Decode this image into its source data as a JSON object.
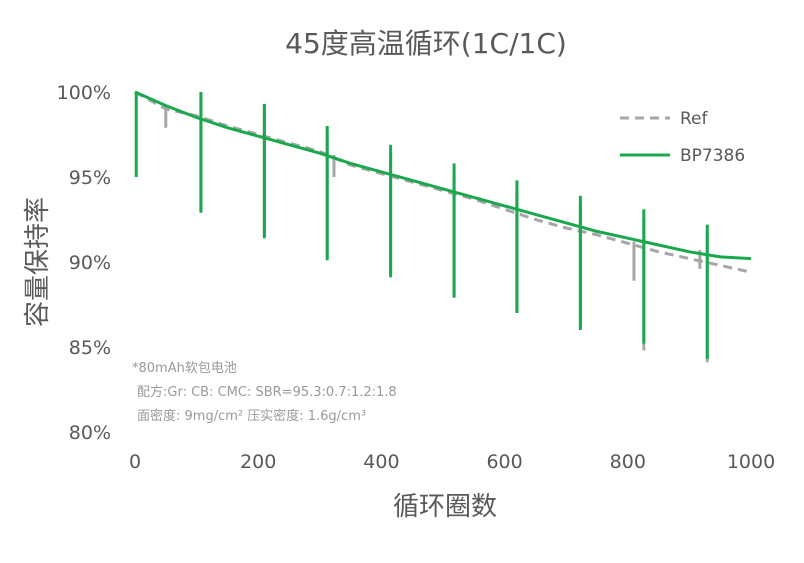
{
  "chart_data": {
    "type": "line",
    "title": "45度高温循环(1C/1C)",
    "xlabel": "循环圈数",
    "ylabel": "容量保持率",
    "xlim": [
      0,
      1000
    ],
    "ylim": [
      80,
      100
    ],
    "x_ticks": [
      "0",
      "200",
      "400",
      "600",
      "800",
      "1000"
    ],
    "y_ticks": [
      "80%",
      "85%",
      "90%",
      "95%",
      "100%"
    ],
    "grid": false,
    "legend_position": "top-right",
    "notes": [
      "*80mAh软包电池",
      "配方:Gr: CB: CMC: SBR=95.3:0.7:1.2:1.8",
      "面密度: 9mg/cm² 压实密度: 1.6g/cm³"
    ],
    "series": [
      {
        "name": "Ref",
        "color": "#a6a6a6",
        "style": "dashed",
        "x": [
          0,
          50,
          100,
          150,
          200,
          250,
          300,
          350,
          400,
          450,
          500,
          550,
          600,
          650,
          700,
          750,
          800,
          850,
          900,
          950,
          1000
        ],
        "y": [
          100.0,
          99.0,
          98.6,
          98.0,
          97.5,
          97.0,
          96.5,
          95.7,
          95.2,
          94.7,
          94.2,
          93.7,
          93.1,
          92.5,
          92.0,
          91.6,
          91.1,
          90.6,
          90.2,
          89.8,
          89.4
        ]
      },
      {
        "name": "BP7386",
        "color": "#1aa84c",
        "style": "solid",
        "x": [
          0,
          50,
          100,
          150,
          200,
          250,
          300,
          350,
          400,
          450,
          500,
          550,
          600,
          650,
          700,
          750,
          800,
          850,
          900,
          950,
          1000
        ],
        "y": [
          100.0,
          99.2,
          98.5,
          97.9,
          97.4,
          96.9,
          96.4,
          95.8,
          95.3,
          94.8,
          94.3,
          93.8,
          93.3,
          92.8,
          92.3,
          91.8,
          91.4,
          91.0,
          90.6,
          90.3,
          90.2
        ]
      }
    ],
    "dips": [
      {
        "series": "BP7386",
        "x": 2,
        "low": 95.0,
        "high": 100.0
      },
      {
        "series": "BP7386",
        "x": 107,
        "low": 92.9,
        "high": 100.0
      },
      {
        "series": "BP7386",
        "x": 210,
        "low": 91.4,
        "high": 99.3
      },
      {
        "series": "BP7386",
        "x": 312,
        "low": 90.1,
        "high": 98.0
      },
      {
        "series": "BP7386",
        "x": 415,
        "low": 89.1,
        "high": 96.9
      },
      {
        "series": "BP7386",
        "x": 518,
        "low": 87.9,
        "high": 95.8
      },
      {
        "series": "BP7386",
        "x": 620,
        "low": 87.0,
        "high": 94.8
      },
      {
        "series": "BP7386",
        "x": 723,
        "low": 86.0,
        "high": 93.9
      },
      {
        "series": "BP7386",
        "x": 826,
        "low": 85.2,
        "high": 93.1
      },
      {
        "series": "BP7386",
        "x": 929,
        "low": 84.3,
        "high": 92.2
      },
      {
        "series": "Ref",
        "x": 50,
        "low": 97.9,
        "high": 99.2
      },
      {
        "series": "Ref",
        "x": 107,
        "low": 93.0,
        "high": 99.8
      },
      {
        "series": "Ref",
        "x": 210,
        "low": 91.5,
        "high": 99.0
      },
      {
        "series": "Ref",
        "x": 312,
        "low": 90.3,
        "high": 97.6
      },
      {
        "series": "Ref",
        "x": 323,
        "low": 95.0,
        "high": 96.3
      },
      {
        "series": "Ref",
        "x": 415,
        "low": 89.3,
        "high": 96.4
      },
      {
        "series": "Ref",
        "x": 518,
        "low": 88.0,
        "high": 95.1
      },
      {
        "series": "Ref",
        "x": 620,
        "low": 87.1,
        "high": 94.2
      },
      {
        "series": "Ref",
        "x": 723,
        "low": 86.2,
        "high": 93.4
      },
      {
        "series": "Ref",
        "x": 810,
        "low": 88.9,
        "high": 91.2
      },
      {
        "series": "Ref",
        "x": 826,
        "low": 84.8,
        "high": 92.6
      },
      {
        "series": "Ref",
        "x": 917,
        "low": 89.6,
        "high": 90.7
      },
      {
        "series": "Ref",
        "x": 929,
        "low": 84.1,
        "high": 91.8
      }
    ]
  }
}
